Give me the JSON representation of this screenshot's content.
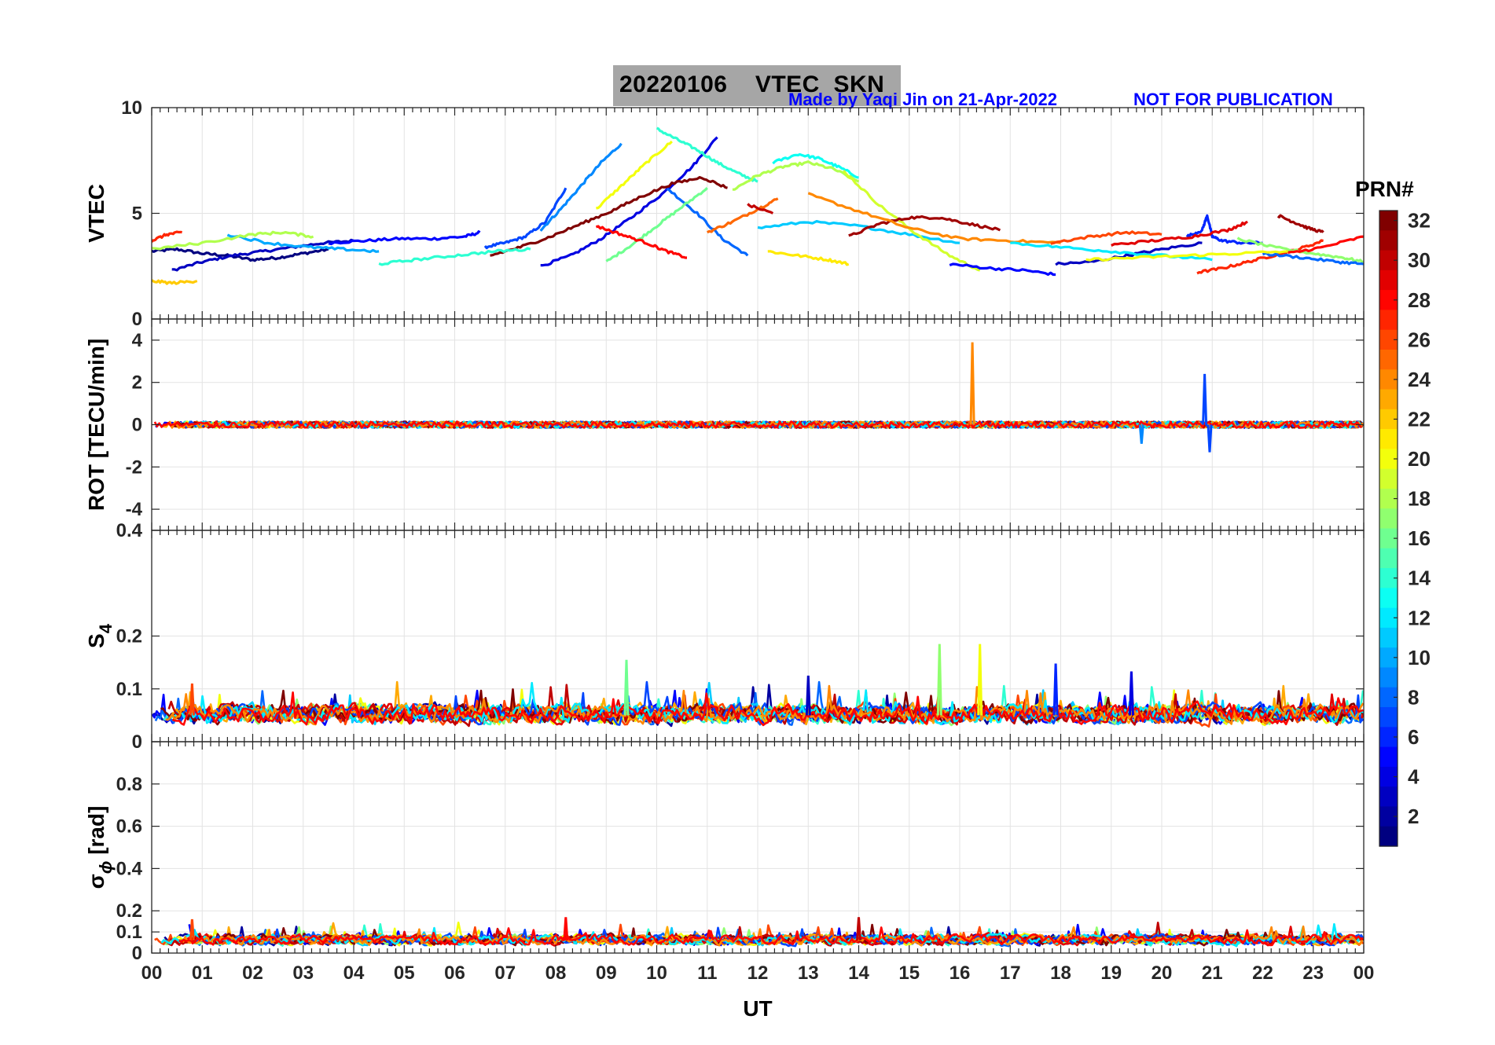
{
  "header": {
    "title_date": "20220106",
    "title_rest": "VTEC  SKN",
    "credit": "Made by Yaqi Jin on 21-Apr-2022",
    "notice": "NOT FOR PUBLICATION",
    "title_bg": "#a6a6a6",
    "credit_color": "#0000ff"
  },
  "chart_data": [
    {
      "type": "line",
      "ylabel": "VTEC",
      "ylim": [
        0,
        10
      ],
      "yticks": [
        "0",
        "5",
        "10"
      ],
      "grid": true,
      "series": [
        {
          "prn": 1,
          "x": [
            0,
            0.5,
            1,
            1.5,
            2,
            2.5,
            3,
            3.5
          ],
          "y": [
            3.2,
            3.3,
            3.1,
            3.0,
            2.8,
            2.9,
            3.1,
            3.3
          ]
        },
        {
          "prn": 3,
          "x": [
            0.4,
            1,
            1.6,
            2.2,
            2.8,
            3.4,
            4.0
          ],
          "y": [
            2.3,
            2.7,
            3.0,
            3.2,
            3.4,
            3.6,
            3.7
          ]
        },
        {
          "prn": 5,
          "x": [
            3.5,
            4.2,
            4.9,
            5.6,
            6.2,
            6.5
          ],
          "y": [
            3.6,
            3.7,
            3.8,
            3.8,
            3.9,
            4.1
          ]
        },
        {
          "prn": 7,
          "x": [
            6.6,
            7.0,
            7.4,
            7.8,
            8.2
          ],
          "y": [
            3.4,
            3.6,
            3.9,
            4.6,
            6.2
          ]
        },
        {
          "prn": 9,
          "x": [
            7.7,
            8.1,
            8.5,
            8.9,
            9.3
          ],
          "y": [
            4.2,
            5.2,
            6.3,
            7.4,
            8.3
          ]
        },
        {
          "prn": 4,
          "x": [
            7.7,
            8.3,
            8.9,
            9.5,
            10.1,
            10.7,
            11.2
          ],
          "y": [
            2.5,
            3.0,
            3.8,
            4.8,
            5.9,
            7.2,
            8.6
          ]
        },
        {
          "prn": 8,
          "x": [
            10.2,
            10.8,
            11.3,
            11.8
          ],
          "y": [
            6.2,
            5.0,
            3.8,
            3.0
          ]
        },
        {
          "prn": 14,
          "x": [
            10.0,
            10.4,
            10.8,
            11.2,
            11.6,
            12.0
          ],
          "y": [
            9.0,
            8.5,
            8.0,
            7.4,
            6.9,
            6.5
          ]
        },
        {
          "prn": 16,
          "x": [
            9.0,
            9.5,
            10.0,
            10.5,
            11.0
          ],
          "y": [
            2.7,
            3.5,
            4.4,
            5.3,
            6.2
          ]
        },
        {
          "prn": 20,
          "x": [
            8.8,
            9.3,
            9.8,
            10.3
          ],
          "y": [
            5.2,
            6.3,
            7.4,
            8.4
          ]
        },
        {
          "prn": 18,
          "x": [
            11.5,
            12.0,
            12.5,
            13.0,
            13.5,
            14.0
          ],
          "y": [
            6.1,
            6.8,
            7.2,
            7.4,
            7.1,
            6.5
          ]
        },
        {
          "prn": 13,
          "x": [
            12.3,
            12.8,
            13.2,
            13.6,
            14.0
          ],
          "y": [
            7.4,
            7.8,
            7.6,
            7.2,
            6.7
          ]
        },
        {
          "prn": 11,
          "x": [
            12.0,
            13.0,
            14.0,
            15.0,
            16.0
          ],
          "y": [
            4.3,
            4.6,
            4.4,
            4.0,
            3.6
          ]
        },
        {
          "prn": 21,
          "x": [
            12.2,
            12.8,
            13.4,
            13.8
          ],
          "y": [
            3.2,
            3.0,
            2.8,
            2.6
          ]
        },
        {
          "prn": 25,
          "x": [
            11.0,
            11.5,
            12.0,
            12.4
          ],
          "y": [
            4.1,
            4.6,
            5.2,
            5.7
          ]
        },
        {
          "prn": 19,
          "x": [
            13.7,
            14.4,
            15.1,
            15.8,
            16.4
          ],
          "y": [
            7.0,
            5.4,
            4.1,
            3.0,
            2.3
          ]
        },
        {
          "prn": 31,
          "x": [
            13.8,
            14.4,
            15.0,
            15.6,
            16.2,
            16.8
          ],
          "y": [
            3.9,
            4.5,
            4.8,
            4.8,
            4.5,
            4.2
          ]
        },
        {
          "prn": 24,
          "x": [
            13.0,
            14.0,
            15.0,
            16.0,
            17.0,
            18.0
          ],
          "y": [
            5.9,
            5.1,
            4.3,
            3.8,
            3.7,
            3.6
          ]
        },
        {
          "prn": 5,
          "x": [
            15.8,
            16.6,
            17.3,
            17.9
          ],
          "y": [
            2.6,
            2.4,
            2.3,
            2.1
          ]
        },
        {
          "prn": 3,
          "x": [
            17.9,
            18.6,
            19.3,
            20.0,
            20.8
          ],
          "y": [
            2.6,
            2.7,
            3.0,
            3.3,
            3.6
          ]
        },
        {
          "prn": 6,
          "x": [
            20.5,
            20.8,
            20.9,
            21.0,
            21.2,
            21.6,
            22.0
          ],
          "y": [
            3.9,
            4.2,
            4.9,
            3.9,
            3.7,
            3.6,
            3.6
          ]
        },
        {
          "prn": 27,
          "x": [
            20.7,
            21.2,
            21.7,
            22.2,
            22.7,
            23.2
          ],
          "y": [
            2.2,
            2.4,
            2.7,
            3.0,
            3.3,
            3.7
          ]
        },
        {
          "prn": 26,
          "x": [
            17.8,
            18.6,
            19.3,
            20.0
          ],
          "y": [
            3.6,
            3.9,
            4.1,
            4.0
          ]
        },
        {
          "prn": 29,
          "x": [
            19.0,
            19.8,
            20.6,
            21.3,
            21.7
          ],
          "y": [
            3.5,
            3.7,
            3.9,
            4.2,
            4.6
          ]
        },
        {
          "prn": 31,
          "x": [
            22.3,
            22.6,
            22.9,
            23.2
          ],
          "y": [
            4.9,
            4.6,
            4.3,
            4.1
          ]
        },
        {
          "prn": 17,
          "x": [
            21.5,
            22.2,
            23.0,
            23.6,
            24.0
          ],
          "y": [
            3.8,
            3.4,
            3.1,
            2.9,
            2.7
          ]
        },
        {
          "prn": 8,
          "x": [
            22.0,
            22.8,
            23.5,
            24.0
          ],
          "y": [
            3.1,
            2.9,
            2.7,
            2.6
          ]
        },
        {
          "prn": 28,
          "x": [
            22.5,
            23.2,
            24.0
          ],
          "y": [
            3.1,
            3.4,
            3.9
          ]
        },
        {
          "prn": 22,
          "x": [
            0.0,
            0.4,
            0.9
          ],
          "y": [
            1.8,
            1.7,
            1.8
          ]
        },
        {
          "prn": 27,
          "x": [
            0.0,
            0.3,
            0.6
          ],
          "y": [
            3.7,
            4.0,
            4.1
          ]
        },
        {
          "prn": 32,
          "x": [
            6.7,
            7.3,
            7.9,
            8.5,
            9.1,
            9.7,
            10.3,
            10.9,
            11.4
          ],
          "y": [
            3.0,
            3.4,
            3.9,
            4.5,
            5.1,
            5.8,
            6.4,
            6.7,
            6.2
          ]
        },
        {
          "prn": 28,
          "x": [
            8.8,
            9.3,
            9.8,
            10.2,
            10.6
          ],
          "y": [
            4.4,
            4.0,
            3.6,
            3.2,
            2.9
          ]
        },
        {
          "prn": 30,
          "x": [
            11.8,
            12.3
          ],
          "y": [
            5.4,
            5.0
          ]
        },
        {
          "prn": 14,
          "x": [
            4.5,
            5.2,
            6.0,
            6.8,
            7.5
          ],
          "y": [
            2.6,
            2.8,
            3.0,
            3.2,
            3.3
          ]
        },
        {
          "prn": 10,
          "x": [
            1.5,
            2.3,
            3.1,
            3.8,
            4.5
          ],
          "y": [
            4.0,
            3.6,
            3.4,
            3.3,
            3.2
          ]
        },
        {
          "prn": 18,
          "x": [
            0.0,
            1.0,
            2.0,
            2.6,
            3.2
          ],
          "y": [
            3.3,
            3.6,
            4.0,
            4.1,
            3.9
          ]
        },
        {
          "prn": 12,
          "x": [
            17.0,
            18.0,
            19.0,
            20.0,
            21.0
          ],
          "y": [
            3.6,
            3.4,
            3.2,
            3.0,
            2.8
          ]
        },
        {
          "prn": 20,
          "x": [
            18.5,
            19.5,
            20.5,
            21.5,
            22.5
          ],
          "y": [
            2.8,
            2.9,
            3.0,
            3.1,
            3.2
          ]
        }
      ]
    },
    {
      "type": "line",
      "ylabel": "ROT [TECU/min]",
      "ylim": [
        -5,
        5
      ],
      "yticks": [
        "-4",
        "-2",
        "0",
        "2",
        "4"
      ],
      "grid": true,
      "noise_amplitude": 0.15,
      "spikes": [
        {
          "prn": 24,
          "x": 16.25,
          "y": 3.9
        },
        {
          "prn": 7,
          "x": 20.85,
          "y": 2.4
        },
        {
          "prn": 7,
          "x": 20.95,
          "y": -1.3
        },
        {
          "prn": 9,
          "x": 19.6,
          "y": -0.9
        }
      ]
    },
    {
      "type": "line",
      "ylabel": "S",
      "ylabel_sub": "4",
      "ylim": [
        0,
        0.4
      ],
      "yticks": [
        "0",
        "0.1",
        "0.2",
        "0.4"
      ],
      "grid": true,
      "baseline": 0.05,
      "noise_amplitude": 0.03,
      "spikes": [
        {
          "prn": 16,
          "x": 9.4,
          "y": 0.155
        },
        {
          "prn": 17,
          "x": 15.6,
          "y": 0.185
        },
        {
          "prn": 20,
          "x": 16.4,
          "y": 0.185
        },
        {
          "prn": 6,
          "x": 17.9,
          "y": 0.148
        },
        {
          "prn": 4,
          "x": 19.4,
          "y": 0.133
        },
        {
          "prn": 3,
          "x": 13.0,
          "y": 0.125
        },
        {
          "prn": 26,
          "x": 0.8,
          "y": 0.11
        }
      ]
    },
    {
      "type": "line",
      "ylabel": "σ",
      "ylabel_sub": "ϕ",
      "ylabel_suffix": " [rad]",
      "ylim": [
        0,
        1
      ],
      "yticks": [
        "0",
        "0.1",
        "0.2",
        "0.4",
        "0.6",
        "0.8"
      ],
      "grid": true,
      "baseline": 0.06,
      "noise_amplitude": 0.04,
      "spikes": [
        {
          "prn": 30,
          "x": 14.0,
          "y": 0.17
        },
        {
          "prn": 28,
          "x": 8.2,
          "y": 0.17
        },
        {
          "prn": 26,
          "x": 0.8,
          "y": 0.16
        }
      ]
    }
  ],
  "x_axis": {
    "label": "UT",
    "range": [
      0,
      24
    ],
    "ticks": [
      "00",
      "01",
      "02",
      "03",
      "04",
      "05",
      "06",
      "07",
      "08",
      "09",
      "10",
      "11",
      "12",
      "13",
      "14",
      "15",
      "16",
      "17",
      "18",
      "19",
      "20",
      "21",
      "22",
      "23",
      "00"
    ]
  },
  "colorbar": {
    "title": "PRN#",
    "range": [
      1,
      32
    ],
    "ticks": [
      "2",
      "4",
      "6",
      "8",
      "10",
      "12",
      "14",
      "16",
      "18",
      "20",
      "22",
      "24",
      "26",
      "28",
      "30",
      "32"
    ],
    "colormap": "jet"
  }
}
